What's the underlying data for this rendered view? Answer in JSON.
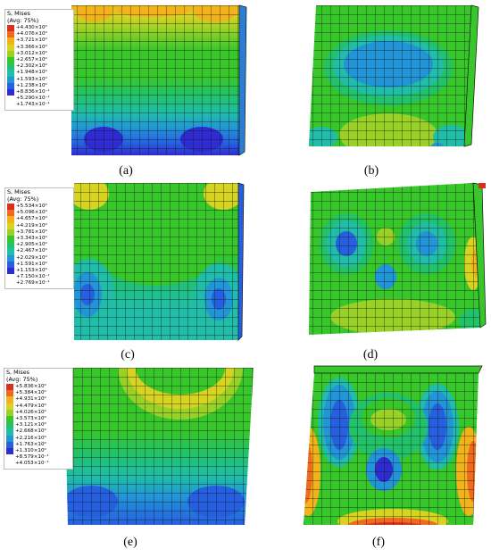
{
  "figure": {
    "palette": [
      "#d7301f",
      "#ef6a1e",
      "#f2b21a",
      "#d6d321",
      "#9ad127",
      "#37c72a",
      "#22c26a",
      "#20bda9",
      "#2294d8",
      "#2660e0",
      "#2e2bd1"
    ],
    "panels": [
      {
        "id": "a",
        "caption": "(a)",
        "legend": {
          "title": "S, Mises",
          "subtitle": "(Avg: 75%)",
          "levels": [
            "+4.430×10⁰",
            "+4.076×10⁰",
            "+3.721×10⁰",
            "+3.366×10⁰",
            "+3.012×10⁰",
            "+2.657×10⁰",
            "+2.302×10⁰",
            "+1.948×10⁰",
            "+1.593×10⁰",
            "+1.238×10⁰",
            "+8.836×10⁻¹",
            "+5.290×10⁻¹",
            "+1.743×10⁻¹"
          ]
        }
      },
      {
        "id": "b",
        "caption": "(b)"
      },
      {
        "id": "c",
        "caption": "(c)",
        "legend": {
          "title": "S, Mises",
          "subtitle": "(Avg: 75%)",
          "levels": [
            "+5.534×10⁰",
            "+5.096×10⁰",
            "+4.657×10⁰",
            "+4.219×10⁰",
            "+3.781×10⁰",
            "+3.343×10⁰",
            "+2.905×10⁰",
            "+2.467×10⁰",
            "+2.029×10⁰",
            "+1.591×10⁰",
            "+1.153×10⁰",
            "+7.150×10⁻¹",
            "+2.769×10⁻¹"
          ]
        }
      },
      {
        "id": "d",
        "caption": "(d)"
      },
      {
        "id": "e",
        "caption": "(e)",
        "legend": {
          "title": "S, Mises",
          "subtitle": "(Avg: 75%)",
          "levels": [
            "+5.836×10⁰",
            "+5.384×10⁰",
            "+4.931×10⁰",
            "+4.479×10⁰",
            "+4.026×10⁰",
            "+3.573×10⁰",
            "+3.121×10⁰",
            "+2.668×10⁰",
            "+2.216×10⁰",
            "+1.763×10⁰",
            "+1.310×10⁰",
            "+8.579×10⁻¹",
            "+4.053×10⁻¹"
          ]
        }
      },
      {
        "id": "f",
        "caption": "(f)"
      }
    ]
  }
}
